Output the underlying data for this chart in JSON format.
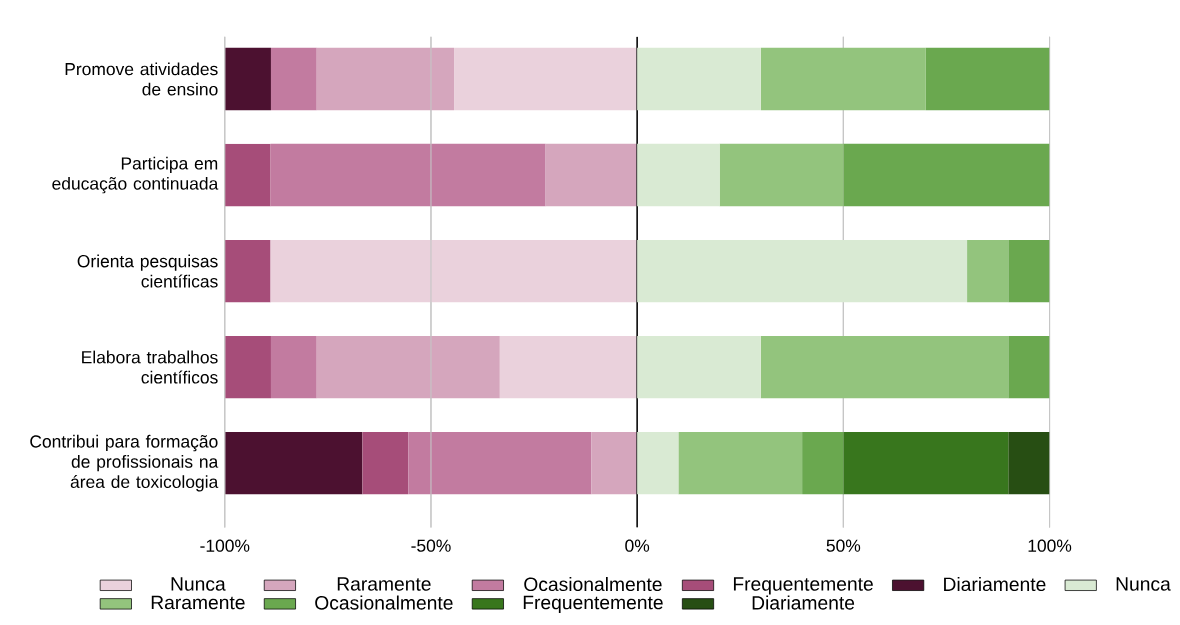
{
  "chart_data": {
    "type": "bar",
    "orientation": "horizontal",
    "stacked": true,
    "categories": [
      "Promove atividades de ensino",
      "Participa em educação continuada",
      "Orienta pesquisas científicas",
      "Elabora trabalhos científicos",
      "Contribui para formação de profissionais na área de toxicologia"
    ],
    "series": [
      {
        "name": "Nunca",
        "color": "#ead1dc",
        "values": [
          -44.4,
          0,
          -88.9,
          -33.3,
          0
        ]
      },
      {
        "name": "Raramente",
        "color": "#d5a6bd",
        "values": [
          -33.3,
          -22.2,
          0,
          -44.4,
          -11.1
        ]
      },
      {
        "name": "Ocasionalmente",
        "color": "#c27ba0",
        "values": [
          -11.1,
          -66.7,
          0,
          -11.1,
          -44.4
        ]
      },
      {
        "name": "Frequentemente",
        "color": "#a64d79",
        "values": [
          0,
          -11.1,
          -11.1,
          -11.1,
          -11.1
        ]
      },
      {
        "name": "Diariamente",
        "color": "#4c1130",
        "values": [
          -11.1,
          0,
          0,
          0,
          -33.3
        ]
      },
      {
        "name": "Nunca",
        "color": "#d9ead3",
        "values": [
          30,
          20,
          80,
          30,
          10
        ]
      },
      {
        "name": "Raramente",
        "color": "#93c47d",
        "values": [
          40,
          30,
          10,
          60,
          30
        ]
      },
      {
        "name": "Ocasionalmente",
        "color": "#6aa84f",
        "values": [
          30,
          50,
          10,
          10,
          10
        ]
      },
      {
        "name": "Frequentemente",
        "color": "#38761d",
        "values": [
          0,
          0,
          0,
          0,
          40
        ]
      },
      {
        "name": "Diariamente",
        "color": "#274e13",
        "values": [
          0,
          0,
          0,
          0,
          10
        ]
      }
    ],
    "xlim": [
      -100,
      100
    ],
    "xticks": [
      {
        "value": -100,
        "label": "-100%"
      },
      {
        "value": -50,
        "label": "-50%"
      },
      {
        "value": 0,
        "label": "0%"
      },
      {
        "value": 50,
        "label": "50%"
      },
      {
        "value": 100,
        "label": "100%"
      }
    ],
    "grid": "x",
    "legend": "bottom",
    "ref_lines": [
      {
        "axis": "x",
        "value": 0,
        "color": "#000000"
      }
    ]
  }
}
